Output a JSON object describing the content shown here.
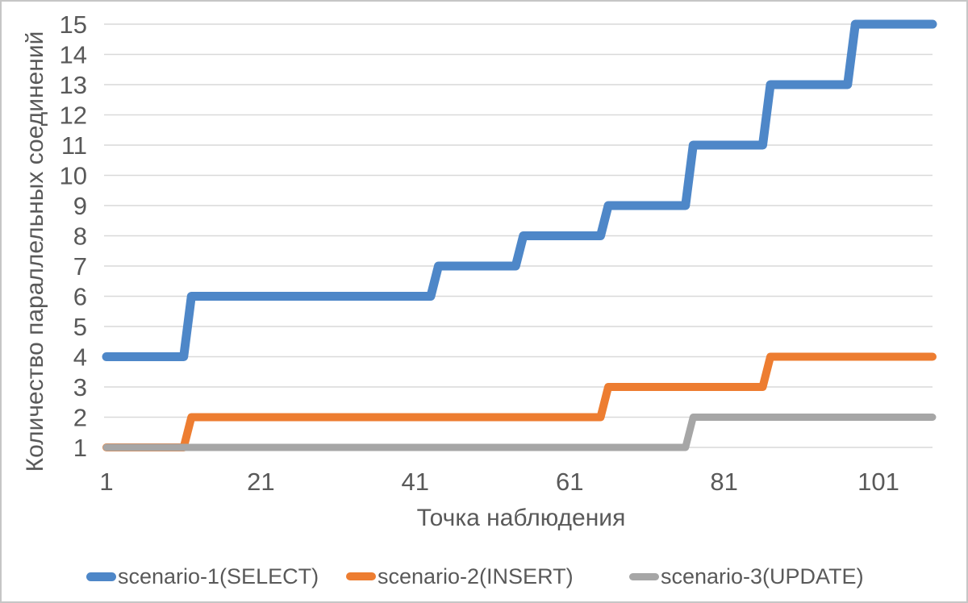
{
  "chart_data": {
    "type": "line",
    "subtype": "stepped-line",
    "title": "",
    "xlabel": "Точка наблюдения",
    "ylabel": "Количество параллельных соединений",
    "xlim": [
      1,
      108
    ],
    "ylim": [
      1,
      15
    ],
    "x_ticks": [
      1,
      21,
      41,
      61,
      81,
      101
    ],
    "y_ticks": [
      1,
      2,
      3,
      4,
      5,
      6,
      7,
      8,
      9,
      10,
      11,
      12,
      13,
      14,
      15
    ],
    "grid": true,
    "legend_position": "bottom",
    "series": [
      {
        "name": "scenario-1(SELECT)",
        "color": "#4e87c8",
        "line_width": 11,
        "points": [
          [
            1,
            4
          ],
          [
            11,
            4
          ],
          [
            12,
            6
          ],
          [
            43,
            6
          ],
          [
            44,
            7
          ],
          [
            54,
            7
          ],
          [
            55,
            8
          ],
          [
            65,
            8
          ],
          [
            66,
            9
          ],
          [
            76,
            9
          ],
          [
            77,
            11
          ],
          [
            86,
            11
          ],
          [
            87,
            13
          ],
          [
            97,
            13
          ],
          [
            98,
            15
          ],
          [
            108,
            15
          ]
        ]
      },
      {
        "name": "scenario-2(INSERT)",
        "color": "#ed7d31",
        "line_width": 10,
        "points": [
          [
            1,
            1
          ],
          [
            11,
            1
          ],
          [
            12,
            2
          ],
          [
            65,
            2
          ],
          [
            66,
            3
          ],
          [
            86,
            3
          ],
          [
            87,
            4
          ],
          [
            108,
            4
          ]
        ]
      },
      {
        "name": "scenario-3(UPDATE)",
        "color": "#a6a6a6",
        "line_width": 9,
        "points": [
          [
            1,
            1
          ],
          [
            76,
            1
          ],
          [
            77,
            2
          ],
          [
            108,
            2
          ]
        ]
      }
    ],
    "colors": {
      "text": "#595959",
      "gridline": "#d9d9d9",
      "background": "#ffffff"
    },
    "tick_font_size": 31
  }
}
